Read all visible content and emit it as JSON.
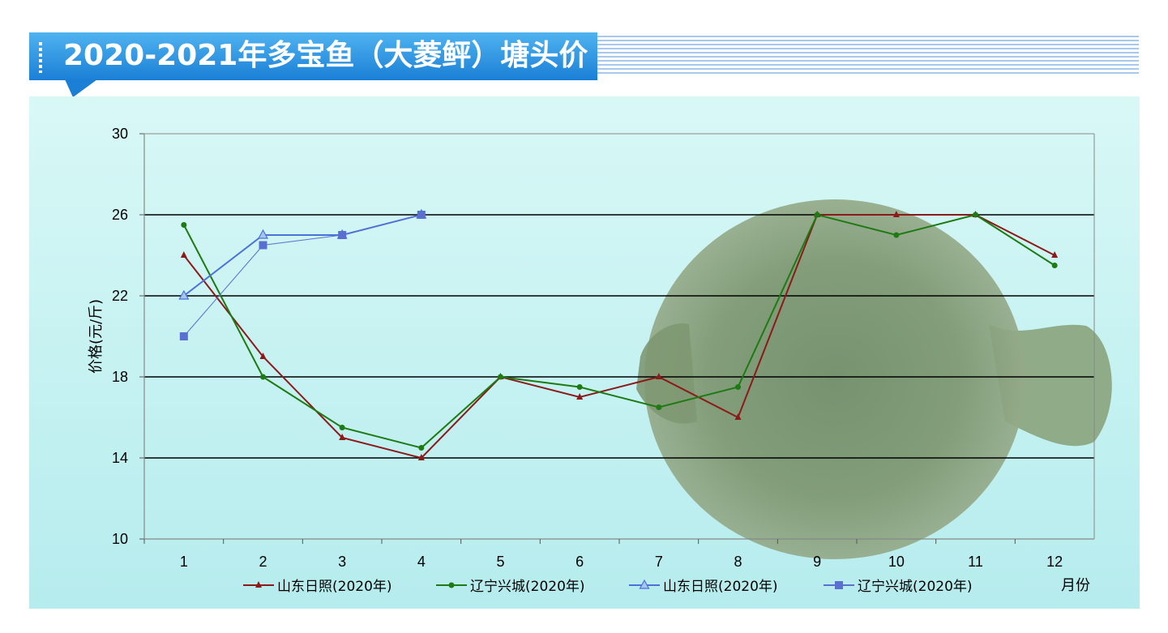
{
  "title": "2020-2021年多宝鱼（大菱鲆）塘头价",
  "chart_data": {
    "type": "line",
    "title": "2020-2021年多宝鱼（大菱鲆）塘头价",
    "xlabel": "月份",
    "ylabel": "价格(元/斤)",
    "categories": [
      "1",
      "2",
      "3",
      "4",
      "5",
      "6",
      "7",
      "8",
      "9",
      "10",
      "11",
      "12"
    ],
    "yticks": [
      "10",
      "14",
      "18",
      "22",
      "26",
      "30"
    ],
    "ylim": [
      10,
      30
    ],
    "grid": true,
    "legend_position": "bottom",
    "series": [
      {
        "name": "山东日照(2020年)",
        "color": "#8b1a1a",
        "marker": "triangle",
        "values": [
          24,
          19,
          15,
          14,
          18,
          17,
          18,
          16,
          26,
          26,
          26,
          24
        ]
      },
      {
        "name": "辽宁兴城(2020年)",
        "color": "#1e7a12",
        "marker": "circle",
        "values": [
          25.5,
          18,
          15.5,
          14.5,
          18,
          17.5,
          16.5,
          17.5,
          26,
          25,
          26,
          23.5
        ]
      },
      {
        "name": "山东日照(2020年)",
        "color": "#4a72d8",
        "marker": "triangle-open",
        "values": [
          22,
          25,
          25,
          26,
          null,
          null,
          null,
          null,
          null,
          null,
          null,
          null
        ]
      },
      {
        "name": "辽宁兴城(2020年)",
        "color": "#5b6fd0",
        "marker": "square",
        "values": [
          20,
          24.5,
          25,
          26,
          null,
          null,
          null,
          null,
          null,
          null,
          null,
          null
        ]
      }
    ]
  }
}
